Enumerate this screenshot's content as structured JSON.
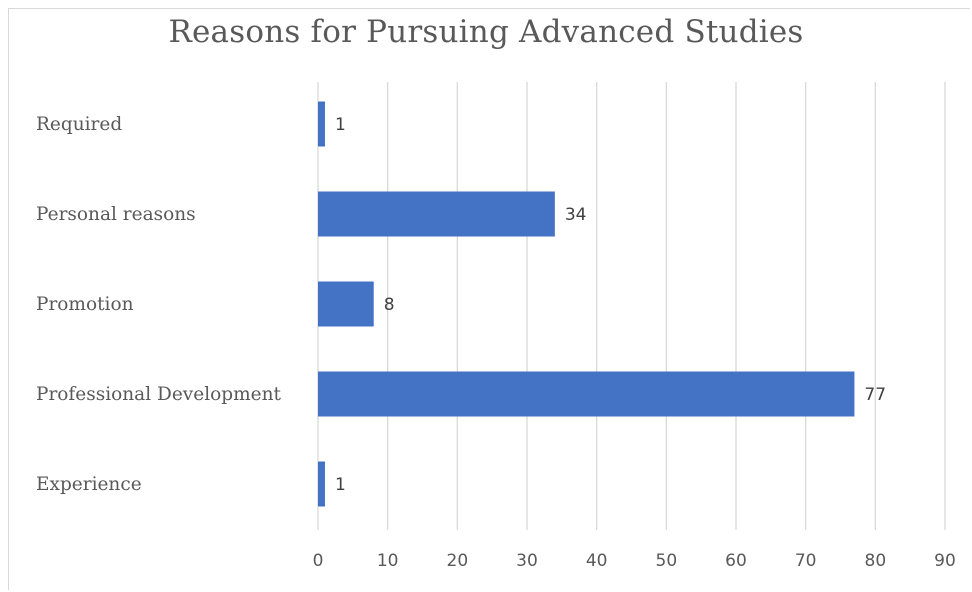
{
  "chart_data": {
    "type": "bar",
    "orientation": "horizontal",
    "title": "Reasons for Pursuing Advanced Studies",
    "categories": [
      "Required",
      "Personal reasons",
      "Promotion",
      "Professional Development",
      "Experience"
    ],
    "values": [
      1,
      34,
      8,
      77,
      1
    ],
    "data_labels": [
      "1",
      "34",
      "8",
      "77",
      "1"
    ],
    "xlim": [
      0,
      90
    ],
    "x_ticks": [
      0,
      10,
      20,
      30,
      40,
      50,
      60,
      70,
      80,
      90
    ],
    "x_tick_labels": [
      "0",
      "10",
      "20",
      "30",
      "40",
      "50",
      "60",
      "70",
      "80",
      "90"
    ],
    "xlabel": "",
    "ylabel": "",
    "grid": "vertical",
    "legend": "none",
    "bar_color": "#4472C4",
    "grid_color": "#d9d9d9"
  }
}
